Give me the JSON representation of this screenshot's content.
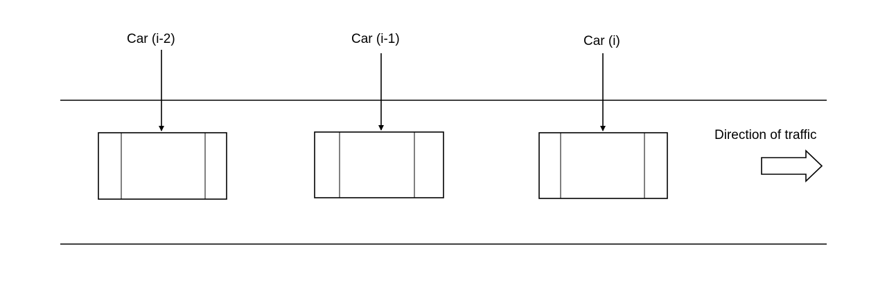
{
  "cars": [
    {
      "label": "Car (i-2)"
    },
    {
      "label": "Car (i-1)"
    },
    {
      "label": "Car (i)"
    }
  ],
  "traffic": {
    "direction_label": "Direction of traffic",
    "arrow_icon": "right-arrow-icon"
  },
  "colors": {
    "stroke": "#000000",
    "background": "#ffffff"
  }
}
